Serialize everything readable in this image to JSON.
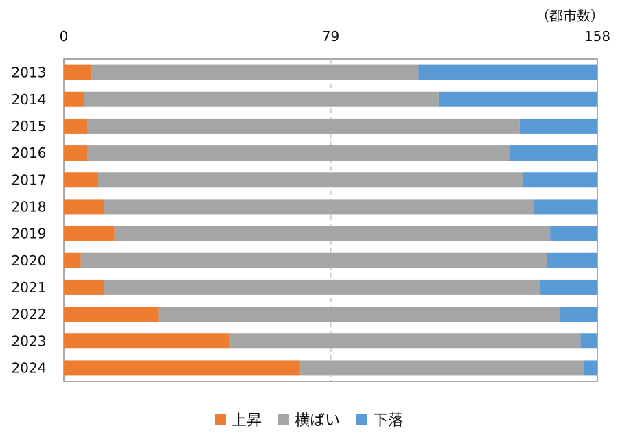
{
  "chart_data": {
    "type": "bar",
    "orientation": "horizontal",
    "stacked": true,
    "unit_label": "（都市数）",
    "xlim": [
      0,
      158
    ],
    "x_ticks": [
      "0",
      "79",
      "158"
    ],
    "gridline_at": 79,
    "legend_position": "bottom",
    "categories": [
      "2013",
      "2014",
      "2015",
      "2016",
      "2017",
      "2018",
      "2019",
      "2020",
      "2021",
      "2022",
      "2023",
      "2024"
    ],
    "series": [
      {
        "name": "上昇",
        "color": "#ED7D31",
        "values": [
          8,
          6,
          7,
          7,
          10,
          12,
          15,
          5,
          12,
          28,
          49,
          70
        ]
      },
      {
        "name": "横ばい",
        "color": "#A5A5A5",
        "values": [
          97,
          105,
          128,
          125,
          126,
          127,
          129,
          138,
          129,
          119,
          104,
          84
        ]
      },
      {
        "name": "下落",
        "color": "#5B9BD5",
        "values": [
          53,
          47,
          23,
          26,
          22,
          19,
          14,
          15,
          17,
          11,
          5,
          4
        ]
      }
    ]
  }
}
